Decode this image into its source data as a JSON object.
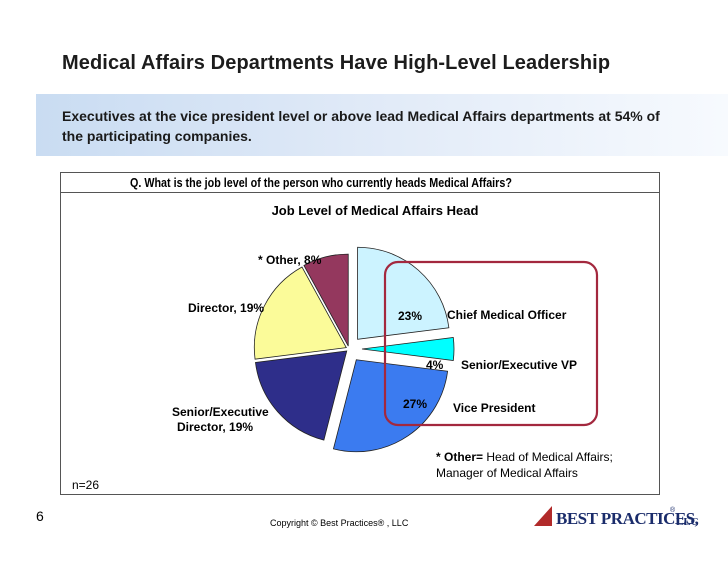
{
  "slide": {
    "title": "Medical Affairs Departments Have High-Level Leadership",
    "subtitle": "Executives at the vice president level or above lead Medical Affairs departments at 54% of the participating companies.",
    "page_number": "6",
    "copyright": "Copyright © Best Practices® , LLC",
    "logo_text": "BEST PRACTICES,",
    "logo_suffix": "LLC",
    "logo_reg": "®"
  },
  "chart_data": {
    "type": "pie",
    "question": "Q. What is the job level of the person who currently heads Medical Affairs?",
    "title": "Job Level of Medical Affairs Head",
    "slices": [
      {
        "label": "Chief Medical Officer",
        "value": 23,
        "value_text": "23%",
        "color": "#ccf3ff"
      },
      {
        "label": "Senior/Executive VP",
        "value": 4,
        "value_text": "4%",
        "color": "#00ffff"
      },
      {
        "label": "Vice President",
        "value": 27,
        "value_text": "27%",
        "color": "#3b7bf0"
      },
      {
        "label": "Senior/Executive Director",
        "value": 19,
        "value_text": "19%",
        "color": "#2e2e8a"
      },
      {
        "label": "Director",
        "value": 19,
        "value_text": "19%",
        "color": "#fbfb99"
      },
      {
        "label": "* Other",
        "value": 8,
        "value_text": "8%",
        "color": "#94385e"
      }
    ],
    "label_texts": {
      "other": "* Other, 8%",
      "director": "Director, 19%",
      "sr_director_line1": "Senior/Executive",
      "sr_director_line2": "Director, 19%"
    },
    "highlight_color": "#a3283e",
    "footnote_bold": "* Other=",
    "footnote_text": " Head of Medical Affairs;",
    "footnote_line2": "Manager of Medical Affairs",
    "n": "n=26"
  }
}
